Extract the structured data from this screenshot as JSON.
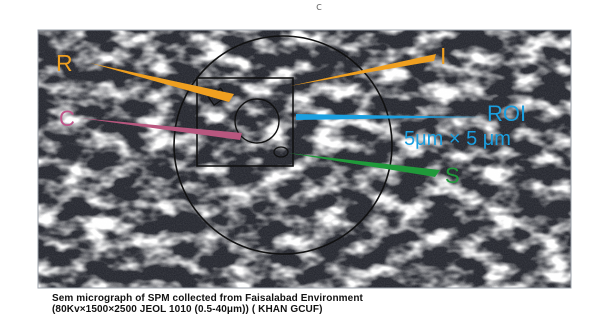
{
  "figure": {
    "top_mark": "c",
    "labels": {
      "R": {
        "text": "R",
        "color": "#f0a020"
      },
      "I": {
        "text": "I",
        "color": "#f0a020"
      },
      "C": {
        "text": "C",
        "color": "#c0558a"
      },
      "ROI_title": {
        "text": "ROI",
        "color": "#1a9fe0"
      },
      "ROI_size": {
        "text": "5μm × 5 μm",
        "color": "#1a9fe0"
      },
      "S": {
        "text": "S",
        "color": "#1f9a3a"
      }
    },
    "caption": {
      "line1": "Sem micrograph of SPM collected from Faisalabad Environment",
      "line2": "(80Kv×1500×2500 JEOL 1010 (0.5-40μm)) ( KHAN GCUF)"
    }
  }
}
